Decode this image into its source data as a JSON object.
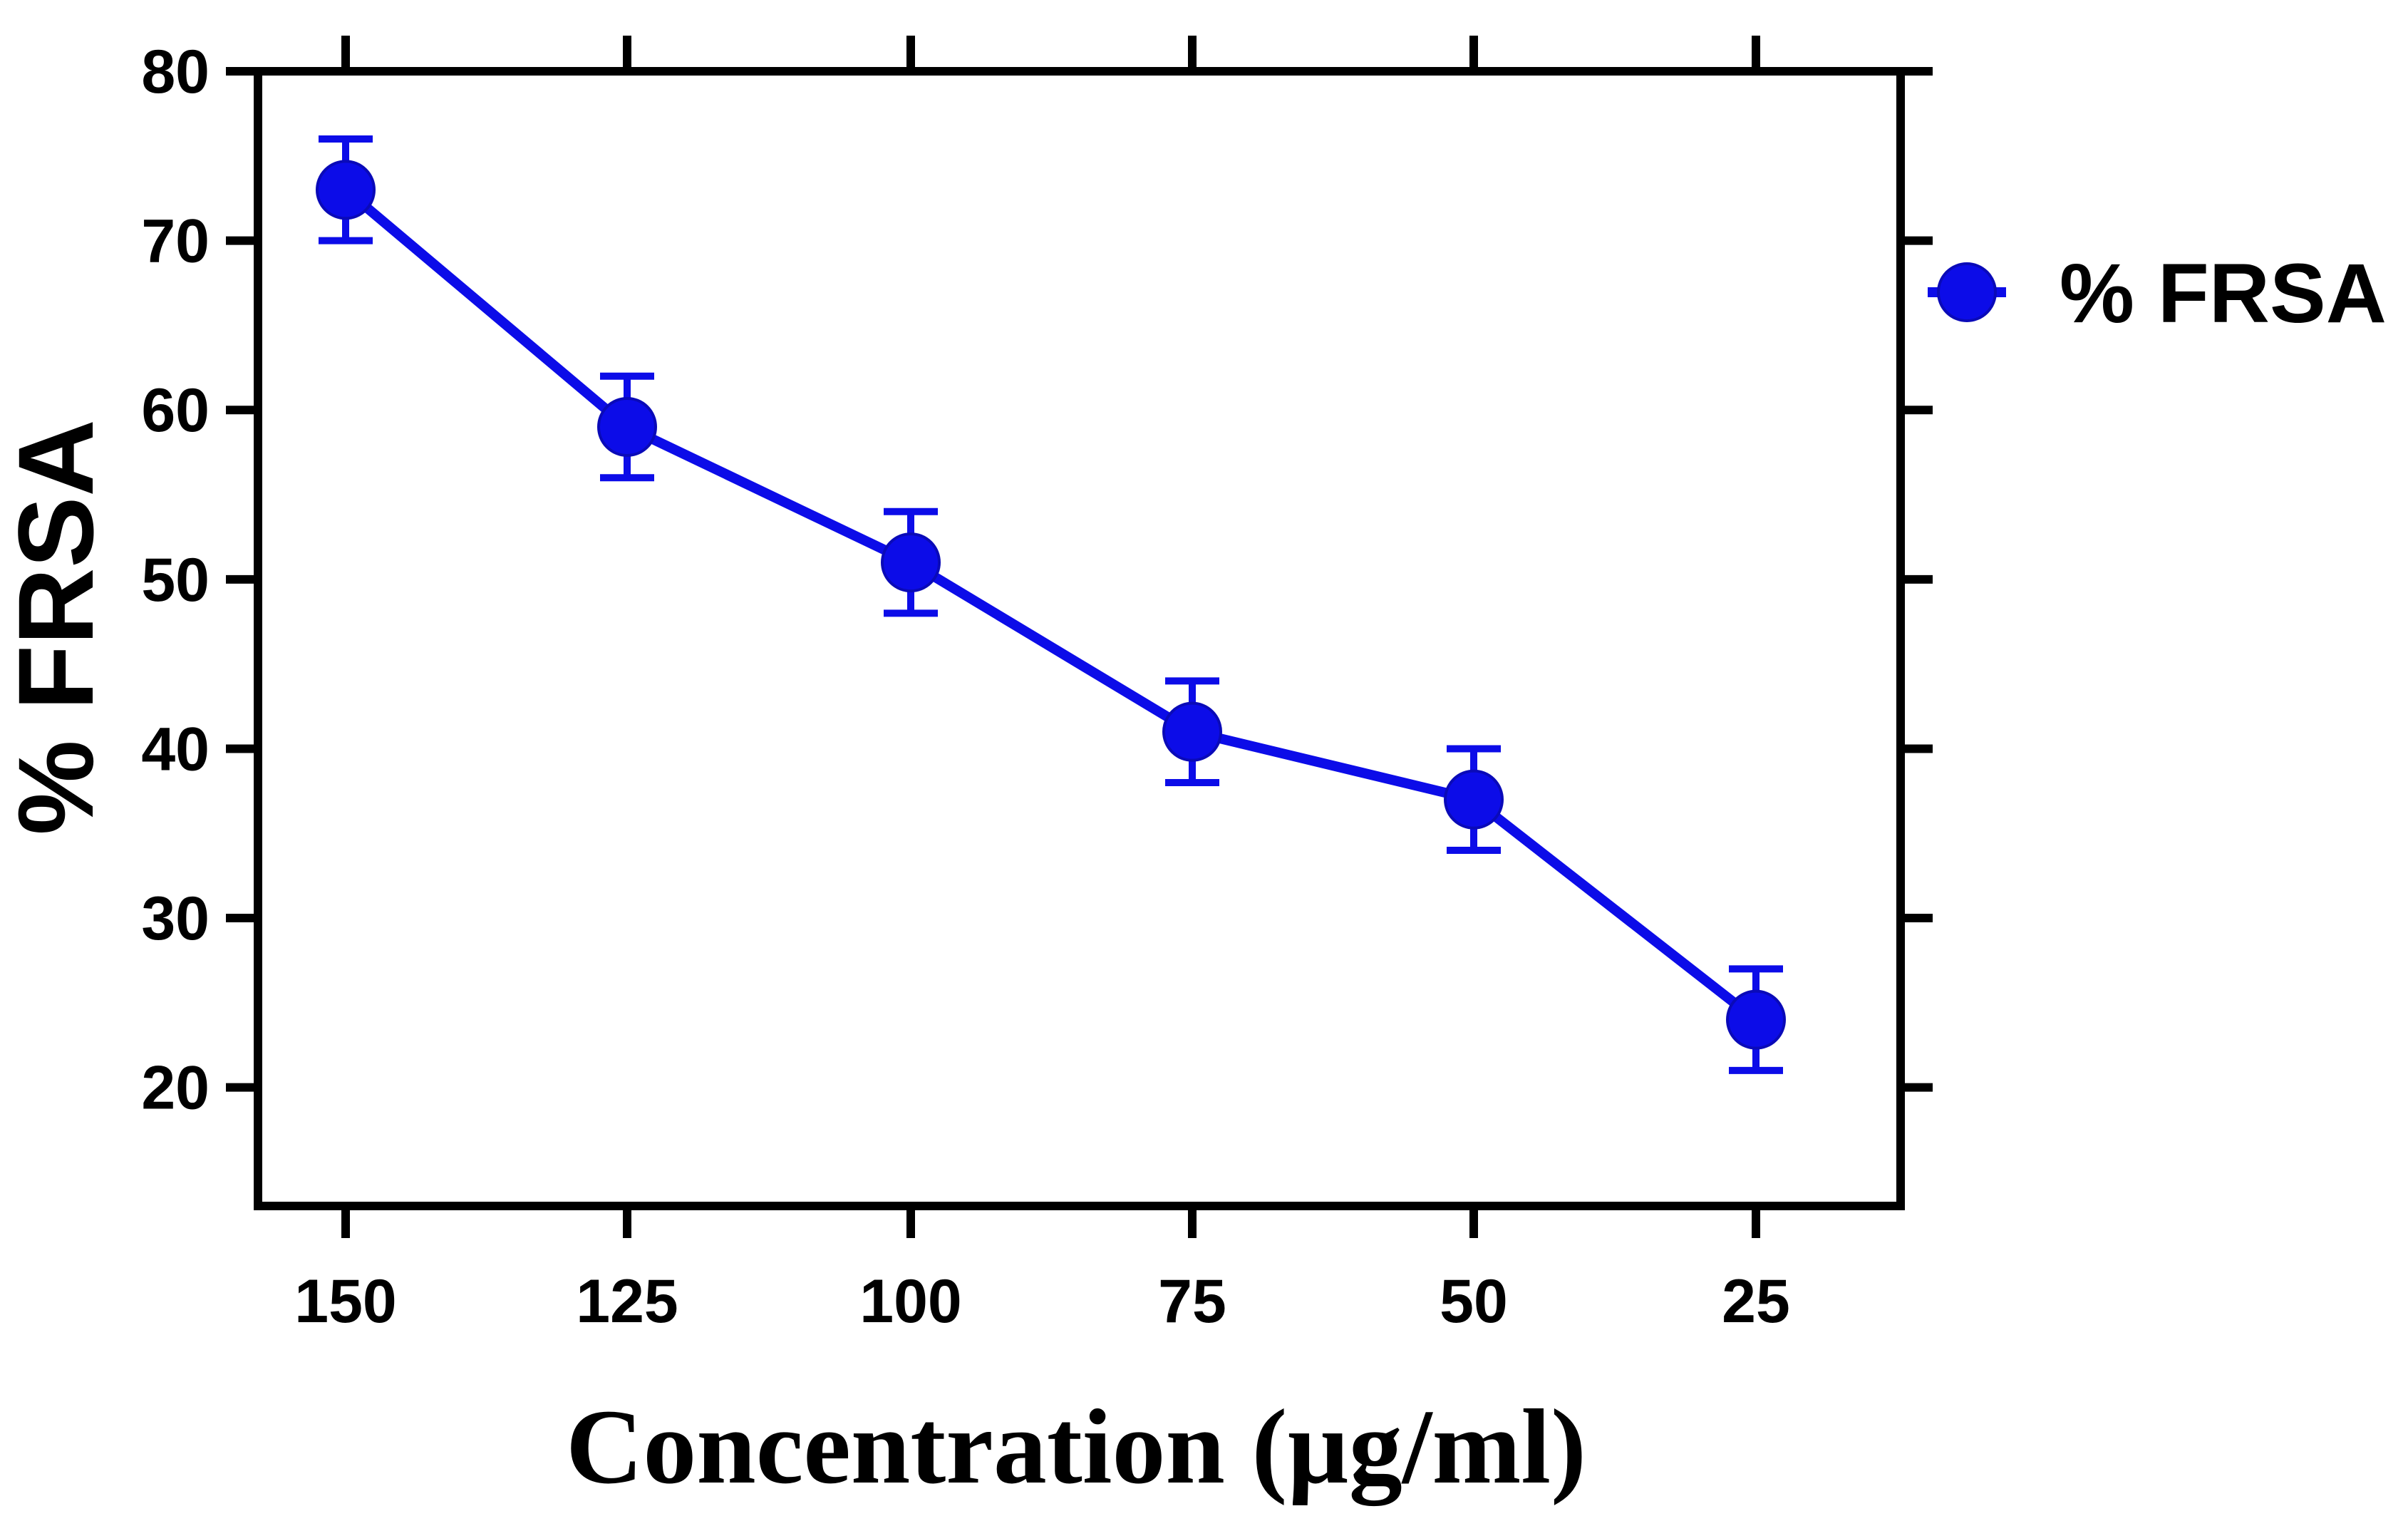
{
  "chart_data": {
    "type": "line",
    "title": "",
    "xlabel": "Concentration (µg/ml)",
    "ylabel": "% FRSA",
    "categories": [
      "150",
      "125",
      "100",
      "75",
      "50",
      "25"
    ],
    "ylim": [
      13,
      80
    ],
    "yticks": [
      20,
      30,
      40,
      50,
      60,
      70,
      80
    ],
    "grid": false,
    "legend": {
      "position": "right-top, outside plot area",
      "entries": [
        "% FRSA"
      ]
    },
    "series": [
      {
        "name": "% FRSA",
        "color": "#0c0ce8",
        "marker": "circle",
        "values": [
          73,
          59,
          51,
          41,
          37,
          24
        ],
        "errors": [
          3,
          3,
          3,
          3,
          3,
          3
        ]
      }
    ]
  }
}
